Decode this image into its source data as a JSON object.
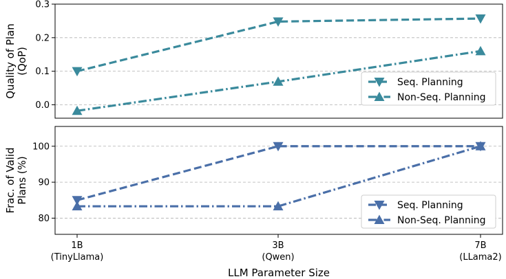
{
  "chart_data": [
    {
      "type": "line",
      "ylabel": "Quality of Plan\n(QoP)",
      "ylim": [
        -0.04,
        0.3
      ],
      "yticks": [
        "0.0",
        "0.1",
        "0.2",
        "0.3"
      ],
      "yticks_values": [
        0.0,
        0.1,
        0.2,
        0.3
      ],
      "grid": true,
      "legend_position": "lower-right",
      "color": "#3a8a9c",
      "x": [
        0,
        1,
        2
      ],
      "series": [
        {
          "name": "Seq. Planning",
          "values": [
            0.1,
            0.248,
            0.257
          ],
          "style": "dashed",
          "marker": "triangle-down"
        },
        {
          "name": "Non-Seq. Planning",
          "values": [
            -0.018,
            0.069,
            0.16
          ],
          "style": "dashdot",
          "marker": "triangle-up"
        }
      ]
    },
    {
      "type": "line",
      "ylabel": "Frac. of Valid\nPlans (%)",
      "ylim": [
        75.5,
        105.5
      ],
      "yticks": [
        "80",
        "90",
        "100"
      ],
      "yticks_values": [
        80,
        90,
        100
      ],
      "grid": true,
      "legend_position": "lower-right",
      "color": "#4a6fa8",
      "x": [
        0,
        1,
        2
      ],
      "series": [
        {
          "name": "Seq. Planning",
          "values": [
            85.0,
            100.0,
            100.0
          ],
          "style": "dashed",
          "marker": "triangle-down"
        },
        {
          "name": "Non-Seq. Planning",
          "values": [
            83.3,
            83.3,
            100.0
          ],
          "style": "dashdot",
          "marker": "triangle-up"
        }
      ]
    }
  ],
  "xaxis": {
    "label": "LLM Parameter Size",
    "tick_labels": [
      {
        "size": "1B",
        "model": "(TinyLlama)"
      },
      {
        "size": "3B",
        "model": "(Qwen)"
      },
      {
        "size": "7B",
        "model": "(LLama2)"
      }
    ]
  }
}
